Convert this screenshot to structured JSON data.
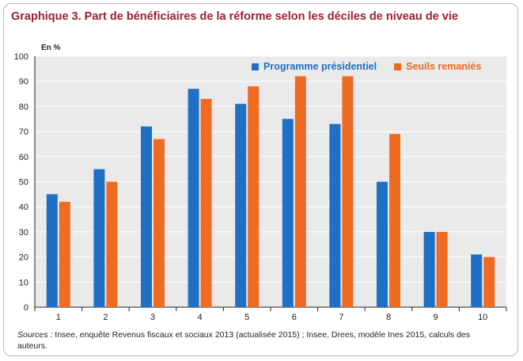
{
  "header": {
    "title": "Graphique 3. Part de bénéficiaires de la réforme selon les déciles de niveau de vie",
    "unit_label": "En %"
  },
  "chart_data": {
    "type": "bar",
    "title": "Graphique 3. Part de bénéficiaires de la réforme selon les déciles de niveau de vie",
    "xlabel": "",
    "ylabel": "En %",
    "categories": [
      "1",
      "2",
      "3",
      "4",
      "5",
      "6",
      "7",
      "8",
      "9",
      "10"
    ],
    "series": [
      {
        "name": "Programme présidentiel",
        "color": "#1f6fc4",
        "values": [
          45,
          55,
          72,
          87,
          81,
          75,
          73,
          50,
          30,
          21
        ]
      },
      {
        "name": "Seuils remaniés",
        "color": "#ef6a22",
        "values": [
          42,
          50,
          67,
          83,
          88,
          92,
          92,
          69,
          30,
          20
        ]
      }
    ],
    "ylim": [
      0,
      100
    ],
    "yticks": [
      0,
      10,
      20,
      30,
      40,
      50,
      60,
      70,
      80,
      90,
      100
    ],
    "grid": true,
    "legend": "top-right"
  },
  "footer": {
    "source_label": "Sources :",
    "source_text": " Insee, enquête Revenus fiscaux et sociaux 2013 (actualisée 2015) ; Insee, Drees, modèle Ines 2015, calculs des auteurs."
  },
  "colors": {
    "title": "#9e1f2c",
    "plot_bg": "#eaeaea",
    "grid": "#ffffff"
  }
}
